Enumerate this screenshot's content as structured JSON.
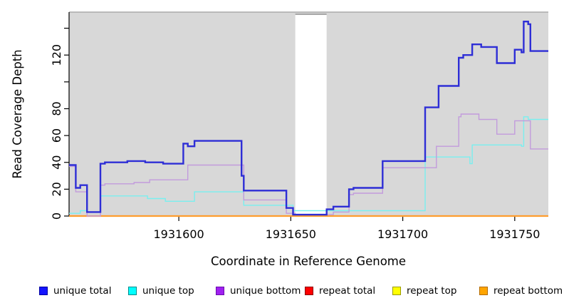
{
  "chart_data": {
    "type": "line",
    "subtype": "step",
    "title": "",
    "xlabel": "Coordinate in Reference Genome",
    "ylabel": "Read Coverage Depth",
    "xlim": [
      1931551,
      1931765
    ],
    "ylim": [
      0,
      152
    ],
    "grid": false,
    "plot_background": "#d8d8d8",
    "page_background": "#ffffff",
    "axis_color": "#000000",
    "x_ticks": [
      {
        "value": 1931600,
        "label": "1931600"
      },
      {
        "value": 1931650,
        "label": "1931650"
      },
      {
        "value": 1931700,
        "label": "1931700"
      },
      {
        "value": 1931750,
        "label": "1931750"
      }
    ],
    "y_ticks": [
      {
        "value": 0,
        "label": "0"
      },
      {
        "value": 20,
        "label": "20"
      },
      {
        "value": 40,
        "label": "40"
      },
      {
        "value": 60,
        "label": "60"
      },
      {
        "value": 80,
        "label": "80"
      },
      {
        "value": 100,
        "label": ""
      },
      {
        "value": 120,
        "label": "120"
      },
      {
        "value": 140,
        "label": ""
      }
    ],
    "gap_region": {
      "x_start": 1931652,
      "x_end": 1931666,
      "color": "#ffffff"
    },
    "series": [
      {
        "name": "repeat total",
        "color": "#dd0000",
        "width": 1.2,
        "points": [
          [
            1931551,
            0
          ],
          [
            1931765,
            0
          ]
        ]
      },
      {
        "name": "repeat top",
        "color": "#ffff00",
        "width": 1.2,
        "points": [
          [
            1931551,
            0
          ],
          [
            1931765,
            0
          ]
        ]
      },
      {
        "name": "repeat bottom",
        "color": "#ff9d2e",
        "width": 2.2,
        "points": [
          [
            1931551,
            0
          ],
          [
            1931765,
            0
          ]
        ]
      },
      {
        "name": "unique top",
        "color": "#79efef",
        "width": 1.4,
        "points": [
          [
            1931551,
            2
          ],
          [
            1931556,
            4
          ],
          [
            1931559,
            3
          ],
          [
            1931565,
            15
          ],
          [
            1931586,
            13
          ],
          [
            1931594,
            11
          ],
          [
            1931607,
            18
          ],
          [
            1931629,
            8
          ],
          [
            1931651,
            4
          ],
          [
            1931710,
            44
          ],
          [
            1931730,
            39
          ],
          [
            1931731,
            53
          ],
          [
            1931753,
            52
          ],
          [
            1931754,
            74
          ],
          [
            1931756,
            72
          ],
          [
            1931765,
            72
          ]
        ]
      },
      {
        "name": "unique bottom",
        "color": "#c29bdc",
        "width": 1.4,
        "points": [
          [
            1931551,
            37
          ],
          [
            1931554,
            18
          ],
          [
            1931559,
            0
          ],
          [
            1931565,
            23
          ],
          [
            1931567,
            24
          ],
          [
            1931580,
            25
          ],
          [
            1931587,
            27
          ],
          [
            1931604,
            38
          ],
          [
            1931629,
            12
          ],
          [
            1931648,
            2
          ],
          [
            1931652,
            1
          ],
          [
            1931669,
            3
          ],
          [
            1931676,
            16
          ],
          [
            1931678,
            17
          ],
          [
            1931691,
            36
          ],
          [
            1931715,
            52
          ],
          [
            1931725,
            74
          ],
          [
            1931726,
            76
          ],
          [
            1931734,
            72
          ],
          [
            1931742,
            61
          ],
          [
            1931750,
            71
          ],
          [
            1931757,
            50
          ],
          [
            1931765,
            50
          ]
        ]
      },
      {
        "name": "unique total",
        "color": "#2e2ed6",
        "width": 2.4,
        "points": [
          [
            1931551,
            38
          ],
          [
            1931554,
            21
          ],
          [
            1931556,
            23
          ],
          [
            1931559,
            3
          ],
          [
            1931565,
            39
          ],
          [
            1931567,
            40
          ],
          [
            1931577,
            41
          ],
          [
            1931585,
            40
          ],
          [
            1931593,
            39
          ],
          [
            1931602,
            54
          ],
          [
            1931604,
            52
          ],
          [
            1931607,
            56
          ],
          [
            1931628,
            30
          ],
          [
            1931629,
            19
          ],
          [
            1931648,
            6
          ],
          [
            1931651,
            1
          ],
          [
            1931666,
            5
          ],
          [
            1931669,
            7
          ],
          [
            1931676,
            20
          ],
          [
            1931678,
            21
          ],
          [
            1931691,
            41
          ],
          [
            1931710,
            81
          ],
          [
            1931716,
            97
          ],
          [
            1931725,
            118
          ],
          [
            1931727,
            120
          ],
          [
            1931731,
            128
          ],
          [
            1931735,
            126
          ],
          [
            1931742,
            114
          ],
          [
            1931750,
            124
          ],
          [
            1931753,
            122
          ],
          [
            1931754,
            145
          ],
          [
            1931756,
            143
          ],
          [
            1931757,
            123
          ],
          [
            1931765,
            123
          ]
        ]
      }
    ],
    "legend": {
      "position": "bottom",
      "items": [
        {
          "label": "unique total",
          "fill": "#1414ff",
          "border": "#0000a0"
        },
        {
          "label": "unique top",
          "fill": "#00ffff",
          "border": "#008b8b"
        },
        {
          "label": "unique bottom",
          "fill": "#a020f0",
          "border": "#6a0dad"
        },
        {
          "label": "repeat total",
          "fill": "#ff0000",
          "border": "#8b0000"
        },
        {
          "label": "repeat top",
          "fill": "#ffff00",
          "border": "#9a9a00"
        },
        {
          "label": "repeat bottom",
          "fill": "#ffa500",
          "border": "#b36b00"
        }
      ]
    }
  }
}
